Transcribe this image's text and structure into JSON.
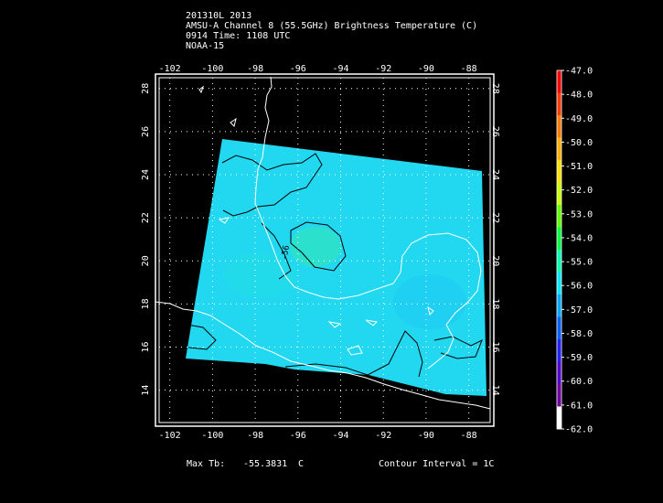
{
  "header": {
    "line1": "201310L 2013",
    "line2": "AMSU-A Channel 8 (55.5GHz) Brightness Temperature (C)",
    "line3": "0914 Time: 1108 UTC",
    "line4": "NOAA-15"
  },
  "map": {
    "lon_ticks": [
      "-102",
      "-100",
      "-98",
      "-96",
      "-94",
      "-92",
      "-90",
      "-88"
    ],
    "lat_ticks": [
      "14",
      "16",
      "18",
      "20",
      "22",
      "24",
      "26",
      "28"
    ],
    "lon_range": [
      -102.5,
      -87
    ],
    "lat_range": [
      12.5,
      28.5
    ],
    "contour_label": "-56",
    "swath_color": "#22d8f0",
    "coast_color": "#ffffff",
    "contour_color": "#000000"
  },
  "colorbar": {
    "labels": [
      "-47.0",
      "-48.0",
      "-49.0",
      "-50.0",
      "-51.0",
      "-52.0",
      "-53.0",
      "-54.0",
      "-55.0",
      "-56.0",
      "-57.0",
      "-58.0",
      "-59.0",
      "-60.0",
      "-61.0",
      "-62.0"
    ],
    "colors": [
      "#ff0000",
      "#ff3a00",
      "#ff7a00",
      "#ffb000",
      "#ffe000",
      "#c8ff00",
      "#60ff00",
      "#00ff40",
      "#00ffb0",
      "#00e8ff",
      "#00a8ff",
      "#0060ff",
      "#2020ff",
      "#5000d0",
      "#7000a0",
      "#ffffff"
    ]
  },
  "footer": {
    "max_tb_label": "Max Tb:",
    "max_tb_value": "-55.3831",
    "max_tb_unit": "C",
    "contour_interval": "Contour Interval = 1C"
  }
}
